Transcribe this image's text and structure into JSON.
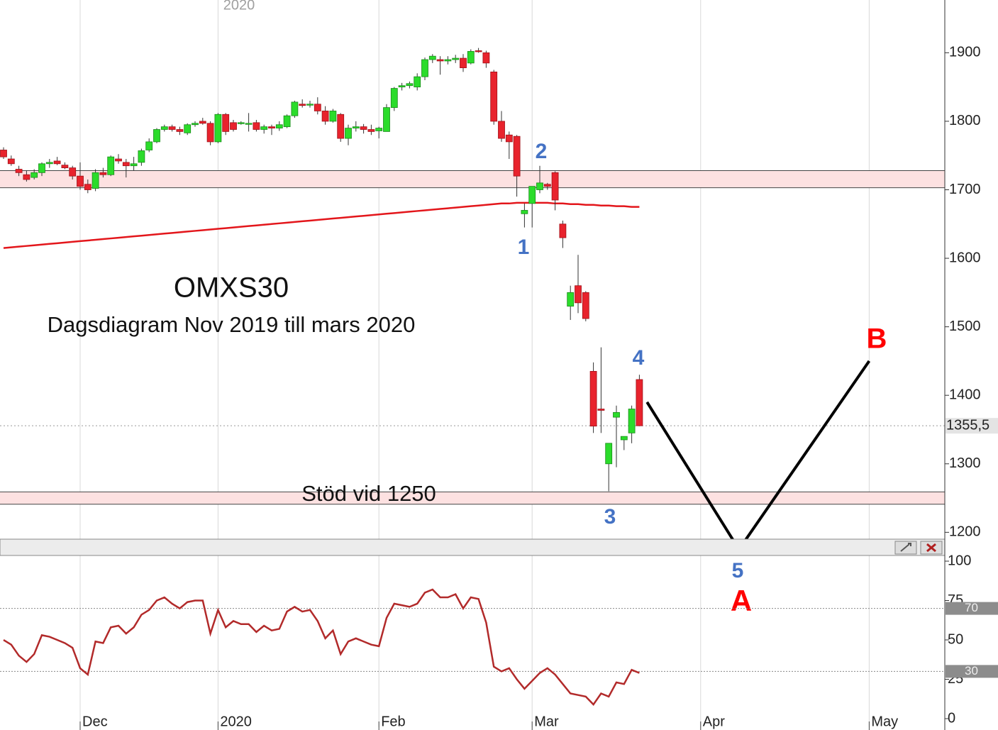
{
  "chart_data": {
    "type": "candlestick",
    "title": "OMXS30",
    "subtitle": "Dagsdiagram Nov 2019 till mars 2020",
    "top_label": "2020",
    "categories": [
      null,
      null,
      null,
      null,
      null,
      null,
      null,
      null,
      null,
      null,
      "Dec",
      null,
      null,
      null,
      null,
      null,
      null,
      null,
      null,
      null,
      null,
      null,
      null,
      null,
      null,
      null,
      null,
      null,
      "2020",
      null,
      null,
      null,
      null,
      null,
      null,
      null,
      null,
      null,
      null,
      null,
      null,
      null,
      null,
      null,
      null,
      null,
      null,
      null,
      null,
      "Feb",
      null,
      null,
      null,
      null,
      null,
      null,
      null,
      null,
      null,
      null,
      null,
      null,
      null,
      null,
      null,
      null,
      null,
      null,
      null,
      "Mar",
      null,
      null,
      null,
      null,
      null,
      null,
      null,
      null,
      null,
      null,
      null,
      null,
      null,
      null,
      null,
      null,
      null,
      null,
      null,
      null,
      null,
      "Apr",
      null,
      null,
      null,
      null,
      null,
      null,
      null,
      null,
      null,
      null,
      null,
      null,
      null,
      null,
      null,
      null,
      null,
      null,
      null,
      null,
      null,
      "May",
      null,
      null,
      null,
      null,
      null,
      null,
      null,
      null,
      null
    ],
    "ohlc": [
      [
        1758,
        1762,
        1745,
        1748
      ],
      [
        1745,
        1750,
        1735,
        1738
      ],
      [
        1730,
        1735,
        1720,
        1725
      ],
      [
        1722,
        1728,
        1712,
        1715
      ],
      [
        1718,
        1730,
        1715,
        1725
      ],
      [
        1725,
        1740,
        1720,
        1738
      ],
      [
        1738,
        1745,
        1732,
        1740
      ],
      [
        1742,
        1748,
        1736,
        1738
      ],
      [
        1736,
        1740,
        1730,
        1732
      ],
      [
        1732,
        1735,
        1715,
        1720
      ],
      [
        1720,
        1740,
        1700,
        1705
      ],
      [
        1708,
        1715,
        1695,
        1700
      ],
      [
        1702,
        1730,
        1698,
        1725
      ],
      [
        1725,
        1732,
        1718,
        1722
      ],
      [
        1722,
        1750,
        1720,
        1748
      ],
      [
        1745,
        1752,
        1738,
        1742
      ],
      [
        1740,
        1745,
        1718,
        1735
      ],
      [
        1735,
        1748,
        1728,
        1738
      ],
      [
        1740,
        1760,
        1735,
        1757
      ],
      [
        1758,
        1775,
        1755,
        1770
      ],
      [
        1770,
        1790,
        1768,
        1788
      ],
      [
        1788,
        1795,
        1785,
        1792
      ],
      [
        1792,
        1795,
        1785,
        1788
      ],
      [
        1788,
        1792,
        1780,
        1785
      ],
      [
        1783,
        1797,
        1780,
        1795
      ],
      [
        1795,
        1800,
        1792,
        1797
      ],
      [
        1800,
        1805,
        1795,
        1797
      ],
      [
        1797,
        1800,
        1765,
        1770
      ],
      [
        1770,
        1812,
        1768,
        1810
      ],
      [
        1810,
        1812,
        1780,
        1785
      ],
      [
        1798,
        1802,
        1785,
        1788
      ],
      [
        1797,
        1800,
        1795,
        1798
      ],
      [
        1797,
        1812,
        1785,
        1797
      ],
      [
        1798,
        1802,
        1785,
        1788
      ],
      [
        1788,
        1795,
        1782,
        1792
      ],
      [
        1792,
        1795,
        1780,
        1790
      ],
      [
        1790,
        1800,
        1786,
        1795
      ],
      [
        1792,
        1810,
        1790,
        1808
      ],
      [
        1808,
        1830,
        1805,
        1828
      ],
      [
        1825,
        1832,
        1820,
        1823
      ],
      [
        1824,
        1830,
        1820,
        1825
      ],
      [
        1825,
        1835,
        1810,
        1815
      ],
      [
        1815,
        1822,
        1795,
        1800
      ],
      [
        1800,
        1818,
        1798,
        1815
      ],
      [
        1810,
        1812,
        1770,
        1775
      ],
      [
        1775,
        1795,
        1765,
        1790
      ],
      [
        1790,
        1800,
        1785,
        1792
      ],
      [
        1792,
        1796,
        1782,
        1788
      ],
      [
        1788,
        1795,
        1780,
        1785
      ],
      [
        1786,
        1792,
        1775,
        1790
      ],
      [
        1785,
        1825,
        1785,
        1820
      ],
      [
        1820,
        1850,
        1815,
        1848
      ],
      [
        1850,
        1856,
        1845,
        1852
      ],
      [
        1852,
        1858,
        1848,
        1855
      ],
      [
        1850,
        1870,
        1845,
        1865
      ],
      [
        1865,
        1893,
        1860,
        1890
      ],
      [
        1890,
        1898,
        1885,
        1895
      ],
      [
        1890,
        1895,
        1868,
        1888
      ],
      [
        1888,
        1895,
        1883,
        1890
      ],
      [
        1890,
        1897,
        1885,
        1892
      ],
      [
        1892,
        1898,
        1872,
        1878
      ],
      [
        1885,
        1905,
        1883,
        1902
      ],
      [
        1903,
        1907,
        1900,
        1902
      ],
      [
        1900,
        1903,
        1878,
        1885
      ],
      [
        1872,
        1875,
        1795,
        1800
      ],
      [
        1800,
        1815,
        1770,
        1775
      ],
      [
        1780,
        1785,
        1745,
        1770
      ],
      [
        1778,
        1780,
        1690,
        1720
      ],
      [
        1665,
        1680,
        1645,
        1670
      ],
      [
        1680,
        1705,
        1645,
        1705
      ],
      [
        1700,
        1735,
        1695,
        1710
      ],
      [
        1708,
        1710,
        1700,
        1705
      ],
      [
        1725,
        1727,
        1670,
        1685
      ],
      [
        1650,
        1655,
        1615,
        1630
      ],
      [
        1530,
        1560,
        1510,
        1550
      ],
      [
        1560,
        1605,
        1520,
        1535
      ],
      [
        1550,
        1552,
        1508,
        1512
      ],
      [
        1435,
        1448,
        1345,
        1355
      ],
      [
        1380,
        1470,
        1345,
        1378
      ],
      [
        1300,
        1330,
        1260,
        1330
      ],
      [
        1368,
        1385,
        1295,
        1375
      ],
      [
        1335,
        1340,
        1320,
        1340
      ],
      [
        1345,
        1385,
        1330,
        1380
      ],
      [
        1423,
        1430,
        1355,
        1355.5
      ],
      null,
      null,
      null,
      null,
      null,
      null,
      null,
      null,
      null,
      null,
      null,
      null,
      null,
      null,
      null,
      null,
      null,
      null,
      null,
      null,
      null,
      null,
      null,
      null,
      null,
      null,
      null,
      null,
      null,
      null,
      null,
      null,
      null,
      null,
      null,
      null,
      null,
      null,
      null
    ],
    "up_color": "#2bdc2b",
    "down_color": "#e8232d",
    "ma": {
      "color": "#e3161b",
      "values": [
        1615,
        1616,
        1617,
        1618,
        1619,
        1620,
        1621,
        1622,
        1623,
        1624,
        1625,
        1626,
        1627,
        1628,
        1629,
        1630,
        1631,
        1632,
        1633,
        1634,
        1635,
        1636,
        1637,
        1638,
        1639,
        1640,
        1641,
        1642,
        1643,
        1644,
        1645,
        1646,
        1647,
        1648,
        1649,
        1650,
        1651,
        1652,
        1653,
        1654,
        1655,
        1656,
        1657,
        1658,
        1659,
        1660,
        1661,
        1662,
        1663,
        1664,
        1665,
        1666,
        1667,
        1668,
        1669,
        1670,
        1671,
        1672,
        1673,
        1674,
        1675,
        1676,
        1677,
        1678,
        1679,
        1680,
        1680,
        1681,
        1681,
        1681,
        1681,
        1681,
        1680,
        1680,
        1679,
        1679,
        1678,
        1678,
        1677,
        1677,
        1676,
        1676,
        1675,
        1675,
        null,
        null,
        null,
        null,
        null,
        null,
        null,
        null,
        null,
        null,
        null,
        null,
        null,
        null,
        null,
        null,
        null,
        null,
        null,
        null,
        null,
        null,
        null,
        null,
        null,
        null,
        null,
        null,
        null,
        null,
        null,
        null,
        null,
        null,
        null,
        null,
        null,
        null,
        null
      ]
    },
    "ylim": [
      1190,
      1977
    ],
    "yticks": [
      1200,
      1300,
      1400,
      1500,
      1600,
      1700,
      1800,
      1900
    ],
    "grid": true,
    "last": {
      "value": 1355.5,
      "label": "1355,5"
    },
    "zones": [
      {
        "from": 1703,
        "to": 1728
      },
      {
        "from": 1241,
        "to": 1259,
        "label": "Stöd vid 1250"
      }
    ],
    "projection": {
      "color": "#000000",
      "x": [
        84,
        96,
        113
      ],
      "values": [
        1390,
        1175,
        1450
      ]
    },
    "annotations": [
      {
        "text": "1",
        "color": "#4472c4"
      },
      {
        "text": "2",
        "color": "#4472c4"
      },
      {
        "text": "3",
        "color": "#4472c4"
      },
      {
        "text": "4",
        "color": "#4472c4"
      },
      {
        "text": "5",
        "color": "#4472c4"
      },
      {
        "text": "A",
        "color": "#ff0000"
      },
      {
        "text": "B",
        "color": "#ff0000"
      }
    ],
    "rsi": {
      "color": "#b22a2a",
      "values": [
        50,
        47,
        40,
        36,
        41,
        53,
        52,
        50,
        48,
        45,
        32,
        28,
        49,
        48,
        58,
        59,
        54,
        58,
        66,
        69,
        75,
        77,
        73,
        70,
        74,
        75,
        75,
        54,
        69,
        58,
        62,
        60,
        60,
        55,
        59,
        56,
        57,
        68,
        71,
        68,
        69,
        62,
        51,
        56,
        41,
        49,
        51,
        49,
        47,
        46,
        64,
        73,
        72,
        71,
        73,
        80,
        82,
        77,
        77,
        79,
        70,
        77,
        76,
        61,
        33,
        30,
        32,
        25,
        19,
        24,
        29,
        32,
        28,
        22,
        16,
        15,
        14,
        9,
        16,
        14,
        23,
        22,
        31,
        29,
        null,
        null,
        null,
        null,
        null,
        null,
        null,
        null,
        null,
        null,
        null,
        null,
        null,
        null,
        null,
        null,
        null,
        null,
        null,
        null,
        null,
        null,
        null,
        null,
        null,
        null,
        null,
        null,
        null,
        null,
        null,
        null,
        null,
        null,
        null,
        null,
        null,
        null,
        null
      ],
      "ylim": [
        -5.4,
        103.6
      ],
      "yticks": [
        0,
        25,
        50,
        75,
        100
      ],
      "levels": [
        70,
        30
      ]
    }
  }
}
